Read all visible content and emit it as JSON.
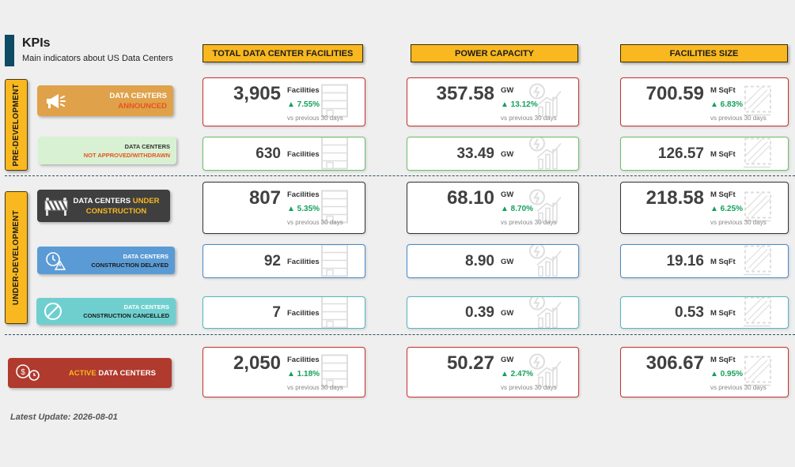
{
  "header": {
    "title": "KPIs",
    "subtitle": "Main indicators about US Data Centers"
  },
  "columns": [
    "TOTAL DATA CENTER FACILITIES",
    "POWER CAPACITY",
    "FACILITIES SIZE"
  ],
  "phases": {
    "pre": "PRE-DEVELOPMENT",
    "under": "UNDER-DEVELOPMENT"
  },
  "comparison_note": "vs previous 30 days",
  "rows": [
    {
      "badge_line1": "DATA CENTERS",
      "badge_line2": "ANNOUNCED",
      "badge_bg": "#dfa24a",
      "badge_fg": "#ffffff",
      "badge_accent": "#e8531f",
      "border": "#c9302c",
      "facilities": {
        "value": "3,905",
        "unit": "Facilities",
        "change": "▲ 7.55%"
      },
      "power": {
        "value": "357.58",
        "unit": "GW",
        "change": "▲ 13.12%"
      },
      "size": {
        "value": "700.59",
        "unit": "M SqFt",
        "change": "▲ 6.83%"
      }
    },
    {
      "badge_line1": "DATA CENTERS",
      "badge_line2": "NOT APPROVED/WITHDRAWN",
      "badge_bg": "#d8f1d3",
      "badge_fg": "#333333",
      "badge_accent": "#e8531f",
      "border": "#6dbf6a",
      "facilities": {
        "value": "630",
        "unit": "Facilities"
      },
      "power": {
        "value": "33.49",
        "unit": "GW"
      },
      "size": {
        "value": "126.57",
        "unit": "M SqFt"
      }
    },
    {
      "badge_line1": "DATA CENTERS",
      "badge_line1_accent": "UNDER",
      "badge_line2": "CONSTRUCTION",
      "badge_bg": "#3f3f3f",
      "badge_fg": "#ffffff",
      "badge_accent": "#f9b81f",
      "border": "#333333",
      "facilities": {
        "value": "807",
        "unit": "Facilities",
        "change": "▲ 5.35%"
      },
      "power": {
        "value": "68.10",
        "unit": "GW",
        "change": "▲ 8.70%"
      },
      "size": {
        "value": "218.58",
        "unit": "M SqFt",
        "change": "▲ 6.25%"
      }
    },
    {
      "badge_line1": "DATA CENTERS",
      "badge_line2": "CONSTRUCTION DELAYED",
      "badge_bg": "#5b9bd5",
      "badge_fg": "#ffffff",
      "badge_accent": "#1a1a1a",
      "border": "#4a88c8",
      "facilities": {
        "value": "92",
        "unit": "Facilities"
      },
      "power": {
        "value": "8.90",
        "unit": "GW"
      },
      "size": {
        "value": "19.16",
        "unit": "M SqFt"
      }
    },
    {
      "badge_line1": "DATA CENTERS",
      "badge_line2": "CONSTRUCTION CANCELLED",
      "badge_bg": "#6fcfcf",
      "badge_fg": "#ffffff",
      "badge_accent": "#1a1a1a",
      "border": "#4fb8c0",
      "facilities": {
        "value": "7",
        "unit": "Facilities"
      },
      "power": {
        "value": "0.39",
        "unit": "GW"
      },
      "size": {
        "value": "0.53",
        "unit": "M SqFt"
      }
    },
    {
      "badge_line1": "ACTIVE",
      "badge_line2": "DATA CENTERS",
      "badge_bg": "#b03a2e",
      "badge_fg": "#ffffff",
      "badge_accent": "#f9b81f",
      "border": "#c9302c",
      "facilities": {
        "value": "2,050",
        "unit": "Facilities",
        "change": "▲ 1.18%"
      },
      "power": {
        "value": "50.27",
        "unit": "GW",
        "change": "▲ 2.47%"
      },
      "size": {
        "value": "306.67",
        "unit": "M SqFt",
        "change": "▲ 0.95%"
      }
    }
  ],
  "footer": {
    "update": "Latest Update: 2026-08-01"
  }
}
